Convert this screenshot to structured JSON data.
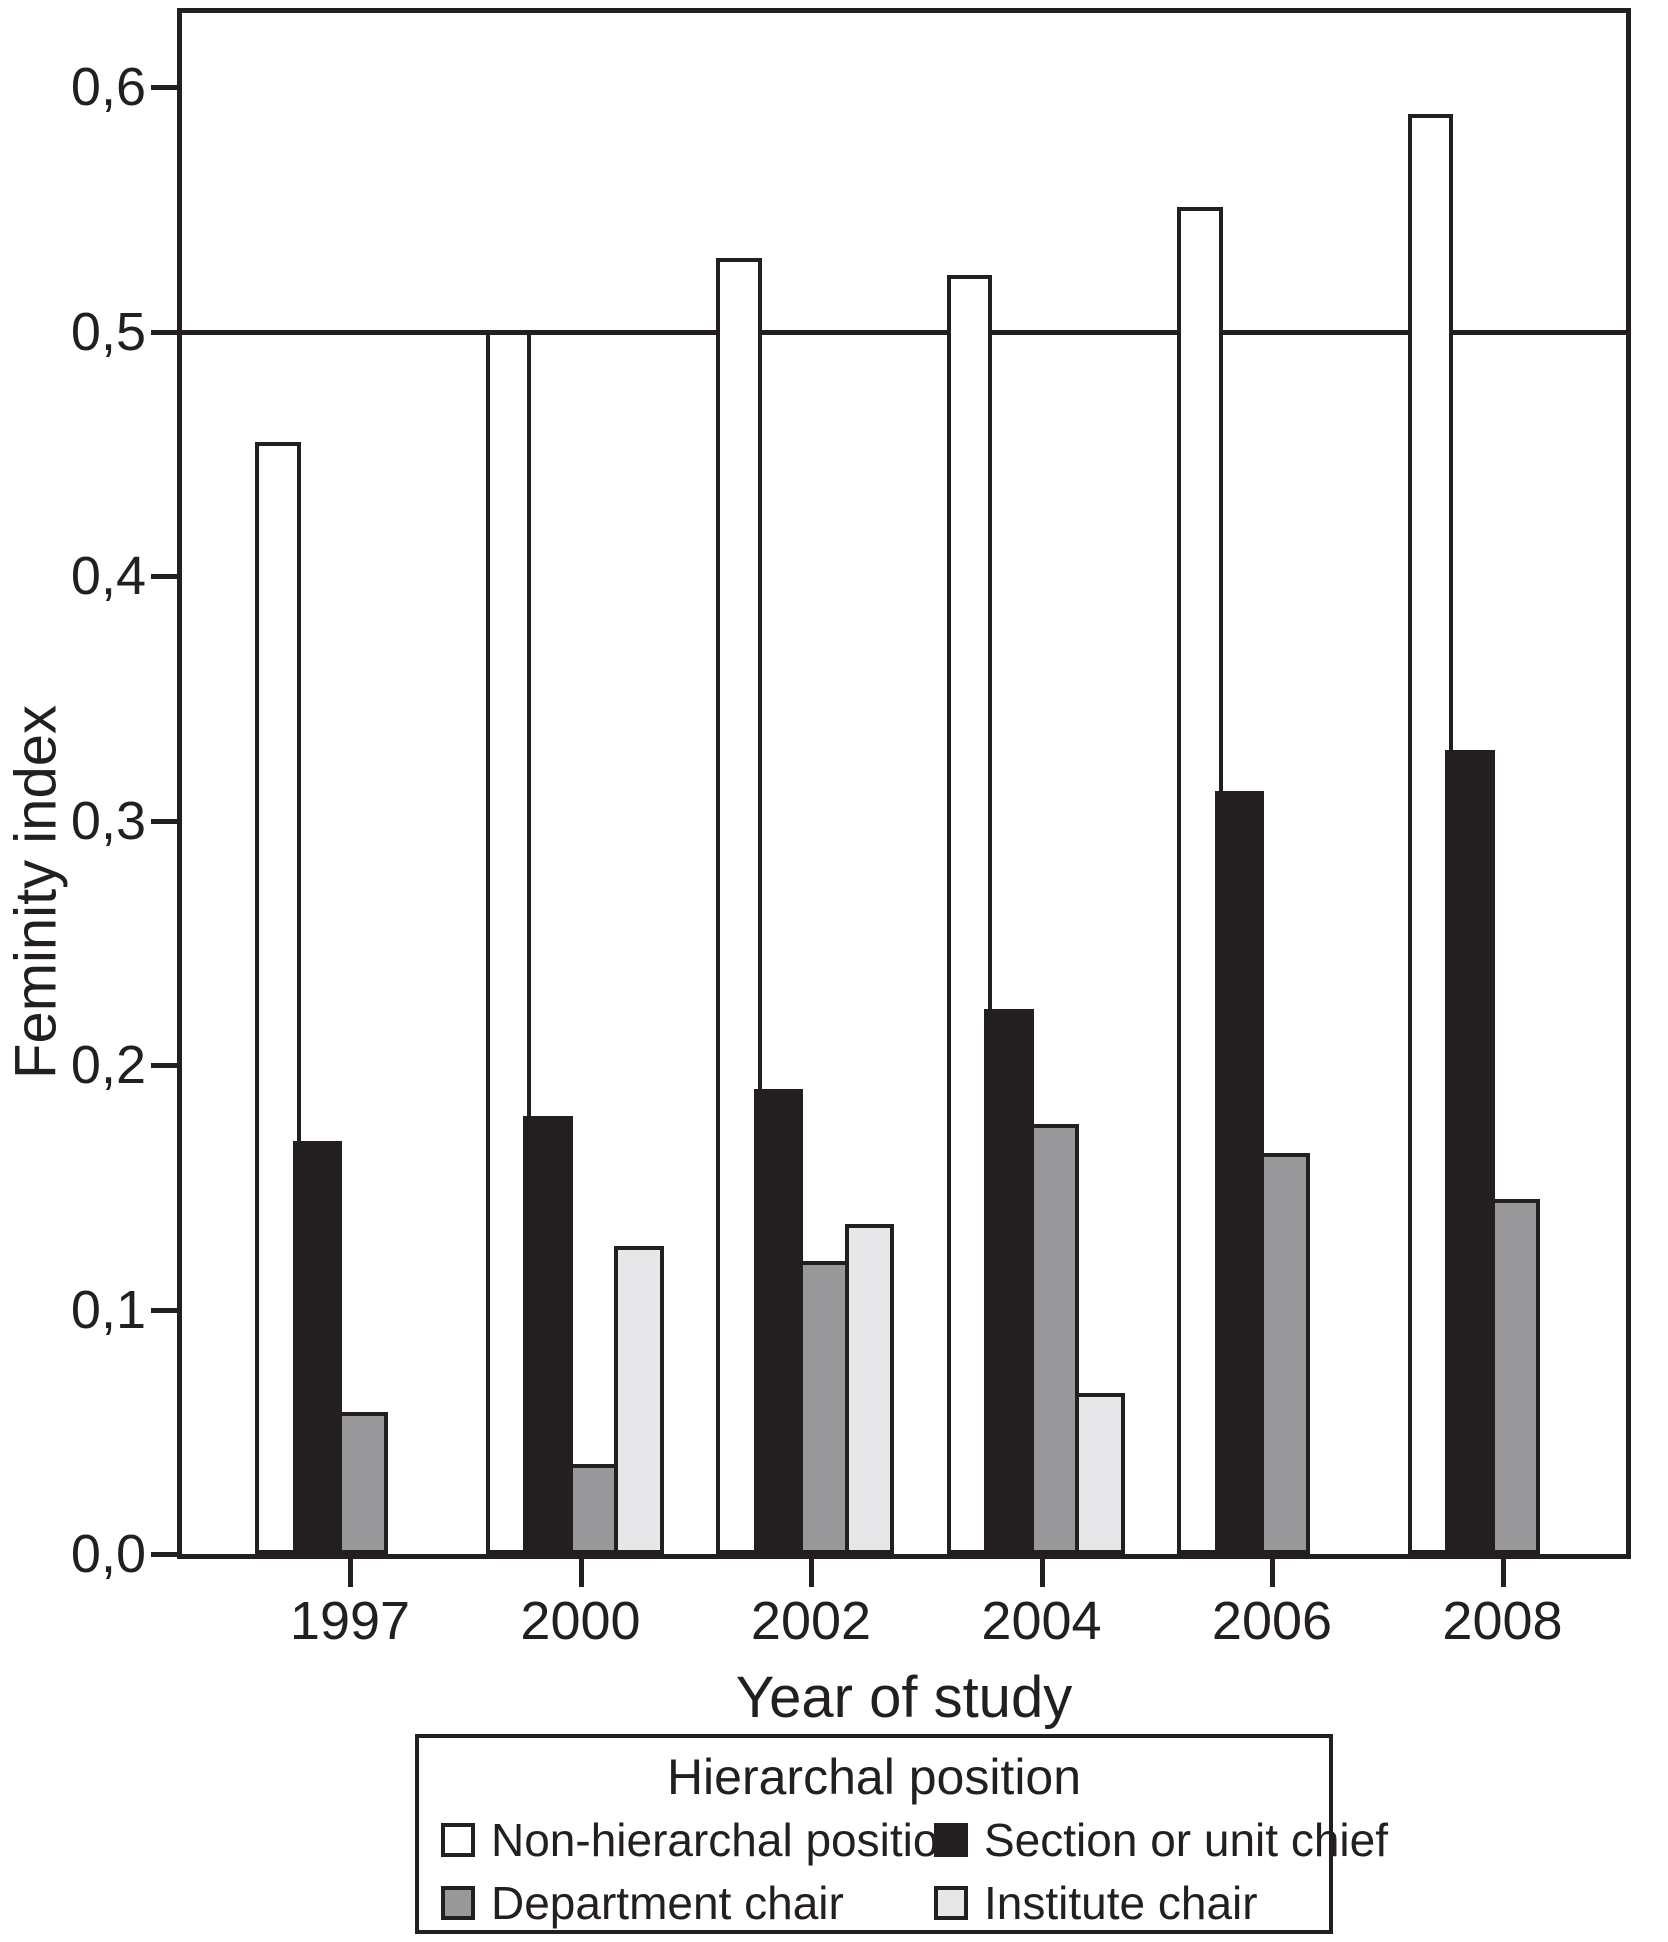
{
  "chart_data": {
    "type": "bar",
    "title": "",
    "xlabel": "Year of study",
    "ylabel": "Feminity index",
    "legend_title": "Hierarchal position",
    "legend_position": "bottom",
    "grid": false,
    "refline": 0.5,
    "ylim": [
      0,
      0.63
    ],
    "categories": [
      "1997",
      "2000",
      "2002",
      "2004",
      "2006",
      "2008"
    ],
    "y_ticks": [
      {
        "value": 0.0,
        "label": "0,0"
      },
      {
        "value": 0.1,
        "label": "0,1"
      },
      {
        "value": 0.2,
        "label": "0,2"
      },
      {
        "value": 0.3,
        "label": "0,3"
      },
      {
        "value": 0.4,
        "label": "0,4"
      },
      {
        "value": 0.5,
        "label": "0,5"
      },
      {
        "value": 0.6,
        "label": "0,6"
      }
    ],
    "series": [
      {
        "name": "Non-hierarchal position",
        "color": "#ffffff",
        "values": [
          0.455,
          0.5,
          0.53,
          0.523,
          0.551,
          0.589
        ]
      },
      {
        "name": "Section or unit chief",
        "color": "#231f20",
        "values": [
          0.169,
          0.179,
          0.19,
          0.223,
          0.312,
          0.329
        ]
      },
      {
        "name": "Department chair",
        "color": "#98989b",
        "values": [
          0.058,
          0.037,
          0.12,
          0.176,
          0.164,
          0.145
        ]
      },
      {
        "name": "Institute chair",
        "color": "#e7e7e9",
        "values": [
          null,
          0.126,
          0.135,
          0.066,
          null,
          null
        ]
      }
    ],
    "outline_color": "#231f20"
  }
}
